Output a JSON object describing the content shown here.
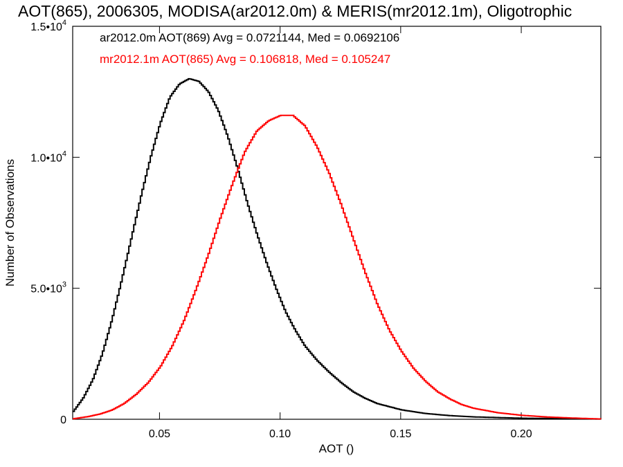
{
  "chart_data": {
    "type": "line",
    "title": "AOT(865), 2006305, MODISA(ar2012.0m) & MERIS(mr2012.1m), Oligotrophic",
    "xlabel": "AOT ()",
    "ylabel": "Number of Observations",
    "xlim": [
      0.014,
      0.233
    ],
    "ylim": [
      0,
      15000
    ],
    "x_ticks": [
      {
        "value": 0.05,
        "label": "0.05"
      },
      {
        "value": 0.1,
        "label": "0.10"
      },
      {
        "value": 0.15,
        "label": "0.15"
      },
      {
        "value": 0.2,
        "label": "0.20"
      }
    ],
    "y_ticks": [
      {
        "value": 0,
        "mantissa": "0",
        "exp": ""
      },
      {
        "value": 5000,
        "mantissa": "5.0•10",
        "exp": "3"
      },
      {
        "value": 10000,
        "mantissa": "1.0•10",
        "exp": "4"
      },
      {
        "value": 15000,
        "mantissa": "1.5•10",
        "exp": "4"
      }
    ],
    "grid": false,
    "legend_placement": "top-left",
    "series": [
      {
        "name": "ar2012.0m AOT(869) Avg = 0.0721144, Med = 0.0692106",
        "color": "#000000",
        "x": [
          0.014,
          0.018,
          0.022,
          0.026,
          0.03,
          0.034,
          0.038,
          0.042,
          0.046,
          0.05,
          0.054,
          0.058,
          0.062,
          0.066,
          0.07,
          0.074,
          0.078,
          0.082,
          0.086,
          0.09,
          0.094,
          0.098,
          0.102,
          0.106,
          0.11,
          0.115,
          0.12,
          0.125,
          0.13,
          0.135,
          0.14,
          0.15,
          0.16,
          0.17,
          0.18,
          0.2,
          0.233
        ],
        "y": [
          300,
          800,
          1500,
          2500,
          3800,
          5300,
          6900,
          8500,
          10000,
          11300,
          12300,
          12800,
          13000,
          12900,
          12500,
          11800,
          10800,
          9600,
          8300,
          7100,
          6000,
          5000,
          4100,
          3400,
          2800,
          2250,
          1800,
          1400,
          1050,
          800,
          600,
          360,
          220,
          140,
          90,
          40,
          10
        ]
      },
      {
        "name": "mr2012.1m AOT(865) Avg = 0.106818, Med = 0.105247",
        "color": "#ff0000",
        "x": [
          0.014,
          0.02,
          0.025,
          0.03,
          0.035,
          0.04,
          0.045,
          0.05,
          0.055,
          0.06,
          0.065,
          0.07,
          0.075,
          0.08,
          0.085,
          0.09,
          0.095,
          0.1,
          0.105,
          0.11,
          0.115,
          0.12,
          0.125,
          0.13,
          0.135,
          0.14,
          0.145,
          0.15,
          0.155,
          0.16,
          0.165,
          0.17,
          0.175,
          0.18,
          0.19,
          0.2,
          0.21,
          0.22,
          0.233
        ],
        "y": [
          20,
          100,
          200,
          350,
          600,
          950,
          1400,
          2000,
          2800,
          3800,
          5000,
          6300,
          7700,
          9000,
          10200,
          11000,
          11400,
          11600,
          11600,
          11200,
          10400,
          9400,
          8200,
          6900,
          5600,
          4400,
          3400,
          2600,
          1950,
          1450,
          1050,
          780,
          560,
          420,
          250,
          150,
          90,
          50,
          10
        ]
      }
    ]
  }
}
